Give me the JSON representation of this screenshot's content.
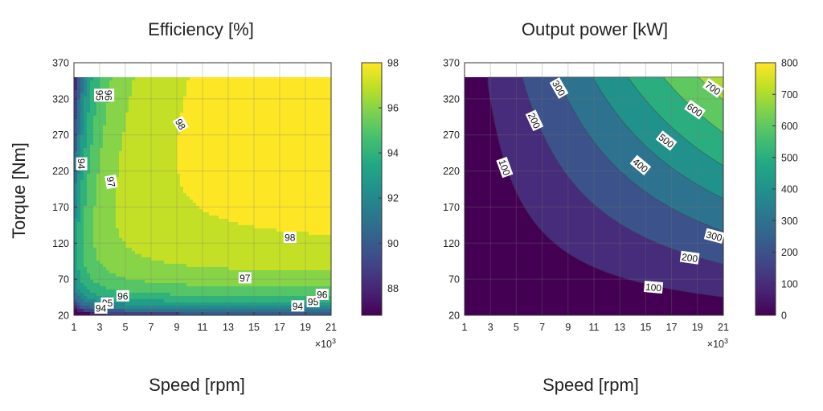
{
  "chart_data": [
    {
      "type": "contour",
      "title": "Efficiency [%]",
      "xlabel": "Speed [rpm]",
      "ylabel": "Torque [Nm]",
      "x_multiplier_label": "×10",
      "x_multiplier_exp": "3",
      "xlim": [
        1,
        21
      ],
      "ylim": [
        20,
        370
      ],
      "data_torque_max": 350,
      "xticks": [
        "1",
        "3",
        "5",
        "7",
        "9",
        "11",
        "13",
        "15",
        "17",
        "19",
        "21"
      ],
      "yticks": [
        "20",
        "70",
        "120",
        "170",
        "220",
        "270",
        "320",
        "370"
      ],
      "levels": [
        87,
        88,
        89,
        90,
        91,
        92,
        93,
        94,
        95,
        96,
        97,
        98
      ],
      "colorbar": {
        "range": [
          86.8,
          98
        ],
        "ticks": [
          "88",
          "90",
          "92",
          "94",
          "96",
          "98"
        ],
        "tick_values": [
          88,
          90,
          92,
          94,
          96,
          98
        ]
      },
      "contour_labels": [
        {
          "text": "95",
          "x": 3.0,
          "y": 325
        },
        {
          "text": "96",
          "x": 3.7,
          "y": 325
        },
        {
          "text": "94",
          "x": 1.6,
          "y": 230
        },
        {
          "text": "97",
          "x": 3.9,
          "y": 205
        },
        {
          "text": "98",
          "x": 9.3,
          "y": 285
        },
        {
          "text": "98",
          "x": 17.8,
          "y": 128
        },
        {
          "text": "97",
          "x": 14.3,
          "y": 72
        },
        {
          "text": "96",
          "x": 4.8,
          "y": 47
        },
        {
          "text": "95",
          "x": 3.6,
          "y": 37
        },
        {
          "text": "94",
          "x": 3.1,
          "y": 30
        },
        {
          "text": "94",
          "x": 18.4,
          "y": 33
        },
        {
          "text": "95",
          "x": 19.6,
          "y": 39
        },
        {
          "text": "96",
          "x": 20.3,
          "y": 49
        }
      ]
    },
    {
      "type": "contour",
      "title": "Output power [kW]",
      "xlabel": "Speed [rpm]",
      "x_multiplier_label": "×10",
      "x_multiplier_exp": "3",
      "xlim": [
        1,
        21
      ],
      "ylim": [
        20,
        370
      ],
      "data_torque_max": 350,
      "xticks": [
        "1",
        "3",
        "5",
        "7",
        "9",
        "11",
        "13",
        "15",
        "17",
        "19",
        "21"
      ],
      "yticks": [
        "20",
        "70",
        "120",
        "170",
        "220",
        "270",
        "320",
        "370"
      ],
      "levels": [
        0,
        100,
        200,
        300,
        400,
        500,
        600,
        700
      ],
      "colorbar": {
        "range": [
          0,
          800
        ],
        "ticks": [
          "0",
          "100",
          "200",
          "300",
          "400",
          "500",
          "600",
          "700",
          "800"
        ],
        "tick_values": [
          0,
          100,
          200,
          300,
          400,
          500,
          600,
          700,
          800
        ]
      },
      "contour_labels": [
        {
          "text": "300",
          "x": 8.3,
          "y": 335
        },
        {
          "text": "200",
          "x": 6.4,
          "y": 290
        },
        {
          "text": "100",
          "x": 4.1,
          "y": 225
        },
        {
          "text": "700",
          "x": 20.2,
          "y": 335
        },
        {
          "text": "600",
          "x": 18.8,
          "y": 305
        },
        {
          "text": "500",
          "x": 16.6,
          "y": 262
        },
        {
          "text": "400",
          "x": 14.6,
          "y": 228
        },
        {
          "text": "300",
          "x": 20.3,
          "y": 130
        },
        {
          "text": "200",
          "x": 18.4,
          "y": 100
        },
        {
          "text": "100",
          "x": 15.6,
          "y": 59
        }
      ]
    }
  ]
}
